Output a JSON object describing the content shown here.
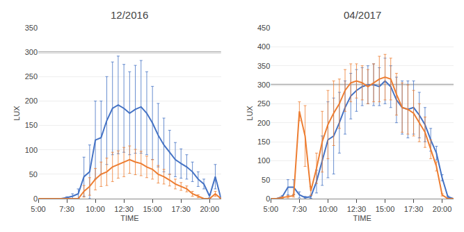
{
  "chart_data": [
    {
      "type": "line",
      "title": "12/2016",
      "x_label": "TIME",
      "y_label": "LUX",
      "x": [
        5.0,
        5.5,
        6.0,
        6.5,
        7.0,
        7.5,
        8.0,
        8.5,
        9.0,
        9.5,
        10.0,
        10.5,
        11.0,
        11.5,
        12.0,
        12.5,
        13.0,
        13.5,
        14.0,
        14.5,
        15.0,
        15.5,
        16.0,
        16.5,
        17.0,
        17.5,
        18.0,
        18.5,
        19.0,
        19.5,
        20.0,
        20.5,
        21.0
      ],
      "xlim": [
        5.0,
        21.0
      ],
      "xticks": [
        {
          "value": 5.0,
          "label": "5:00"
        },
        {
          "value": 7.5,
          "label": "7:30"
        },
        {
          "value": 10.0,
          "label": "10:00"
        },
        {
          "value": 12.5,
          "label": "12:30"
        },
        {
          "value": 15.0,
          "label": "15:00"
        },
        {
          "value": 17.5,
          "label": "17:30"
        },
        {
          "value": 20.0,
          "label": "20:00"
        }
      ],
      "ylim": [
        0,
        350
      ],
      "yticks": [
        0,
        50,
        100,
        150,
        200,
        250,
        300,
        350
      ],
      "grid": true,
      "reference_line": {
        "value": 300,
        "color": "#999999"
      },
      "series": [
        {
          "color": "#4472C4",
          "values": [
            0,
            0,
            0,
            0,
            0,
            2,
            5,
            10,
            45,
            55,
            120,
            125,
            160,
            185,
            192,
            185,
            175,
            183,
            188,
            175,
            155,
            130,
            110,
            95,
            80,
            72,
            65,
            55,
            40,
            30,
            5,
            45,
            0
          ],
          "errors": [
            0,
            0,
            0,
            0,
            0,
            2,
            5,
            10,
            40,
            55,
            80,
            75,
            90,
            95,
            100,
            90,
            85,
            90,
            95,
            85,
            75,
            65,
            55,
            45,
            35,
            30,
            25,
            20,
            15,
            10,
            3,
            25,
            0
          ]
        },
        {
          "color": "#ED7D31",
          "values": [
            0,
            0,
            0,
            0,
            0,
            0,
            0,
            0,
            15,
            25,
            40,
            50,
            55,
            65,
            70,
            75,
            80,
            75,
            72,
            65,
            60,
            50,
            45,
            38,
            30,
            25,
            20,
            10,
            5,
            0,
            0,
            10,
            0
          ],
          "errors": [
            0,
            0,
            0,
            0,
            0,
            0,
            0,
            0,
            12,
            18,
            22,
            25,
            28,
            30,
            28,
            30,
            28,
            26,
            25,
            22,
            20,
            18,
            15,
            12,
            10,
            8,
            6,
            5,
            3,
            0,
            0,
            5,
            0
          ]
        }
      ]
    },
    {
      "type": "line",
      "title": "04/2017",
      "x_label": "TIME",
      "y_label": "LUX",
      "x": [
        5.0,
        5.5,
        6.0,
        6.5,
        7.0,
        7.5,
        8.0,
        8.5,
        9.0,
        9.5,
        10.0,
        10.5,
        11.0,
        11.5,
        12.0,
        12.5,
        13.0,
        13.5,
        14.0,
        14.5,
        15.0,
        15.5,
        16.0,
        16.5,
        17.0,
        17.5,
        18.0,
        18.5,
        19.0,
        19.5,
        20.0,
        20.5,
        21.0
      ],
      "xlim": [
        5.0,
        21.0
      ],
      "xticks": [
        {
          "value": 5.0,
          "label": "5:00"
        },
        {
          "value": 7.5,
          "label": "7:30"
        },
        {
          "value": 10.0,
          "label": "10:00"
        },
        {
          "value": 12.5,
          "label": "12:30"
        },
        {
          "value": 15.0,
          "label": "15:00"
        },
        {
          "value": 17.5,
          "label": "17:30"
        },
        {
          "value": 20.0,
          "label": "20:00"
        }
      ],
      "ylim": [
        0,
        450
      ],
      "yticks": [
        0,
        50,
        100,
        150,
        200,
        250,
        300,
        350,
        400,
        450
      ],
      "grid": true,
      "reference_line": {
        "value": 300,
        "color": "#999999"
      },
      "series": [
        {
          "color": "#4472C4",
          "values": [
            0,
            0,
            5,
            30,
            30,
            10,
            3,
            5,
            45,
            100,
            155,
            165,
            200,
            240,
            270,
            285,
            295,
            300,
            300,
            295,
            310,
            295,
            260,
            240,
            235,
            240,
            220,
            195,
            155,
            120,
            55,
            5,
            0
          ],
          "errors": [
            0,
            0,
            3,
            20,
            20,
            8,
            3,
            4,
            30,
            65,
            100,
            100,
            80,
            70,
            60,
            55,
            50,
            50,
            55,
            50,
            60,
            55,
            60,
            70,
            75,
            70,
            60,
            45,
            30,
            18,
            8,
            2,
            0
          ]
        },
        {
          "color": "#ED7D31",
          "values": [
            0,
            0,
            3,
            5,
            8,
            230,
            165,
            20,
            80,
            150,
            195,
            225,
            250,
            285,
            305,
            310,
            305,
            295,
            305,
            315,
            320,
            315,
            275,
            240,
            235,
            225,
            200,
            175,
            130,
            85,
            10,
            0,
            0
          ],
          "errors": [
            0,
            0,
            2,
            3,
            4,
            25,
            80,
            12,
            40,
            80,
            90,
            85,
            65,
            55,
            50,
            45,
            45,
            45,
            50,
            60,
            60,
            55,
            55,
            65,
            65,
            60,
            50,
            40,
            25,
            12,
            3,
            0,
            0
          ]
        }
      ]
    }
  ]
}
